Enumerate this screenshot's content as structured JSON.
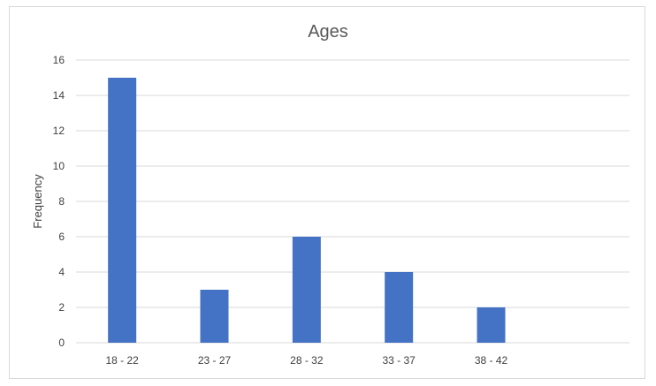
{
  "chart_data": {
    "type": "bar",
    "title": "Ages",
    "xlabel": "",
    "ylabel": "Frequency",
    "categories": [
      "18 - 22",
      "23 - 27",
      "28 - 32",
      "33 - 37",
      "38 - 42",
      ""
    ],
    "values": [
      15,
      3,
      6,
      4,
      2,
      null
    ],
    "ylim": [
      0,
      16
    ],
    "yticks": [
      0,
      2,
      4,
      6,
      8,
      10,
      12,
      14,
      16
    ],
    "grid": true,
    "legend": "none",
    "bar_color": "#4472c4",
    "grid_color": "#d9d9d9"
  }
}
